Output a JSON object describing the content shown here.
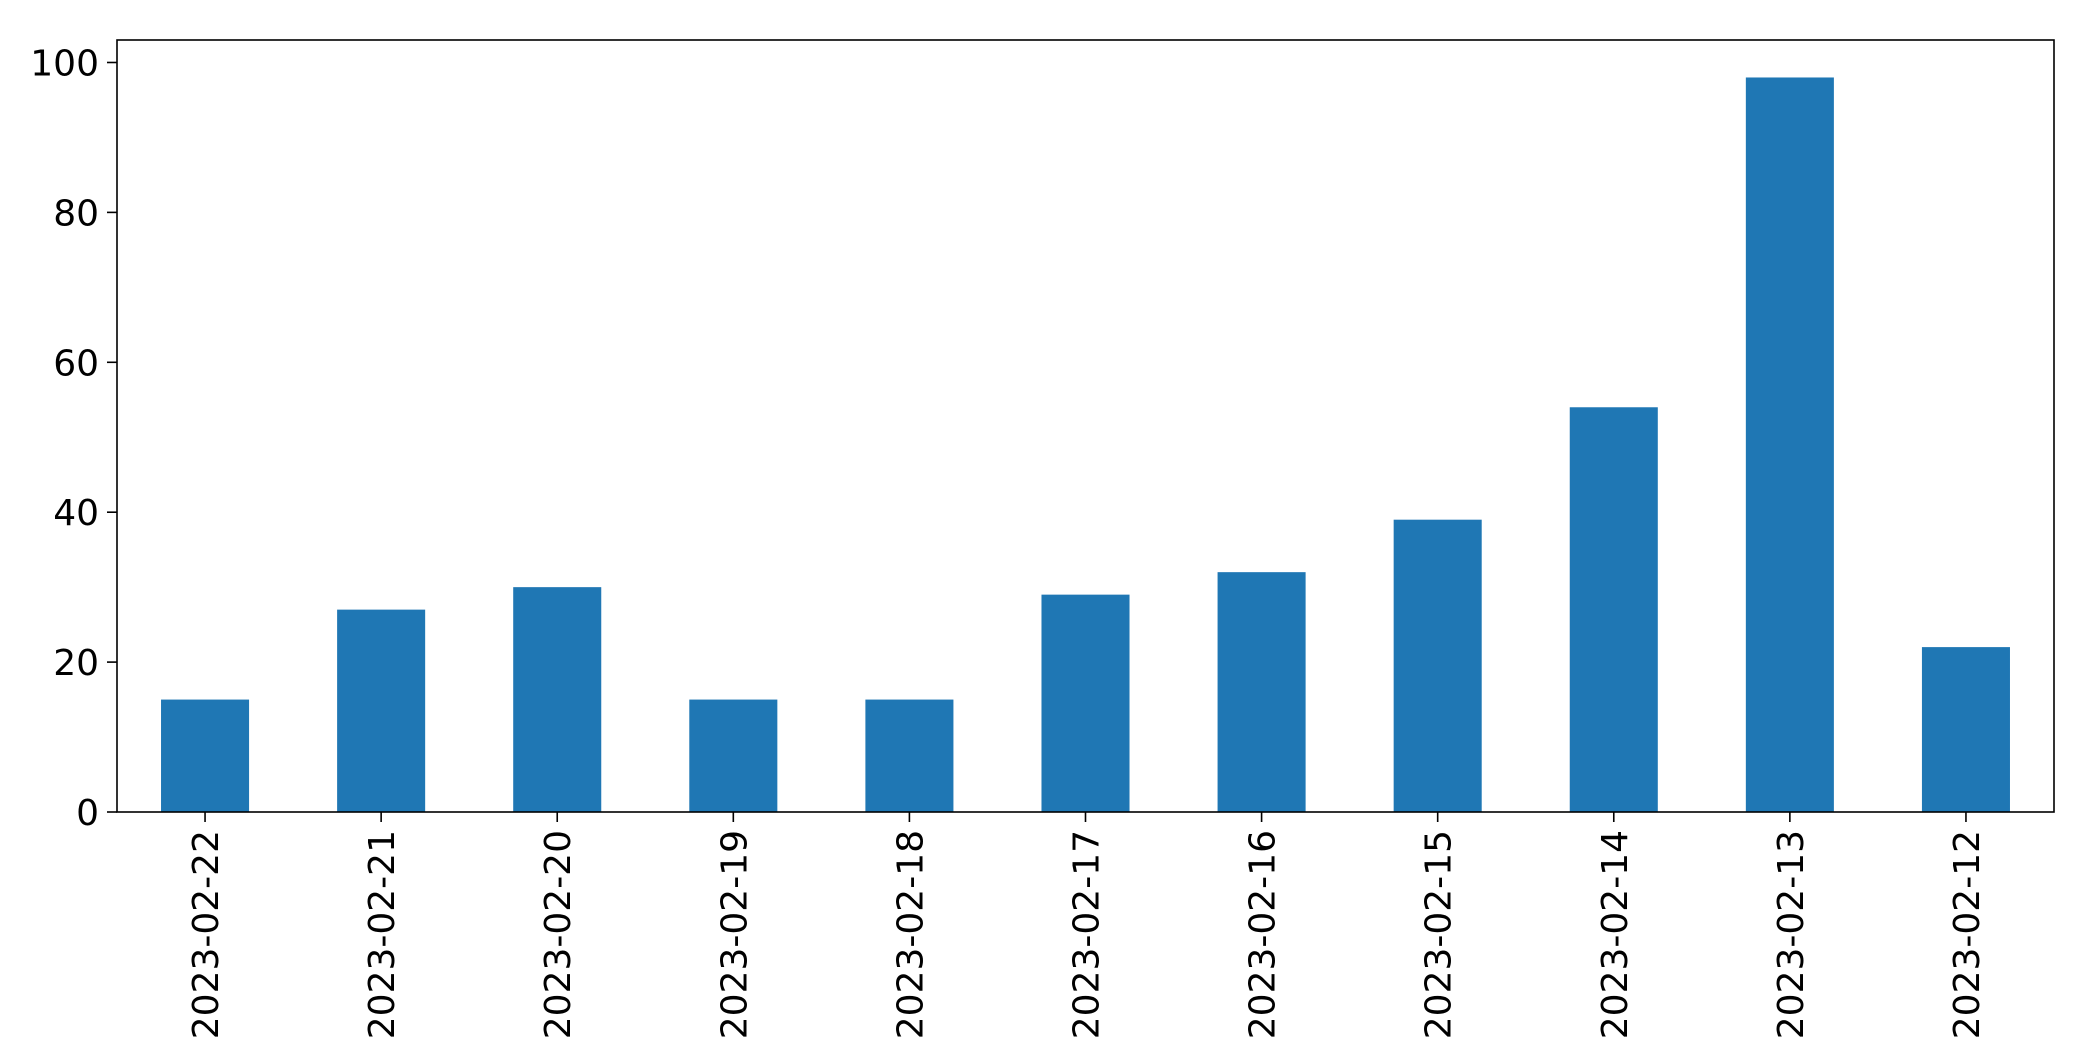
{
  "chart_data": {
    "type": "bar",
    "title": "",
    "xlabel": "",
    "ylabel": "",
    "categories": [
      "2023-02-22",
      "2023-02-21",
      "2023-02-20",
      "2023-02-19",
      "2023-02-18",
      "2023-02-17",
      "2023-02-16",
      "2023-02-15",
      "2023-02-14",
      "2023-02-13",
      "2023-02-12"
    ],
    "values": [
      15,
      27,
      30,
      15,
      15,
      29,
      32,
      39,
      54,
      98,
      22
    ],
    "ylim": [
      0,
      103
    ],
    "yticks": [
      0,
      20,
      40,
      60,
      80,
      100
    ],
    "grid": false,
    "legend": "none",
    "bar_color": "#1f77b4"
  }
}
